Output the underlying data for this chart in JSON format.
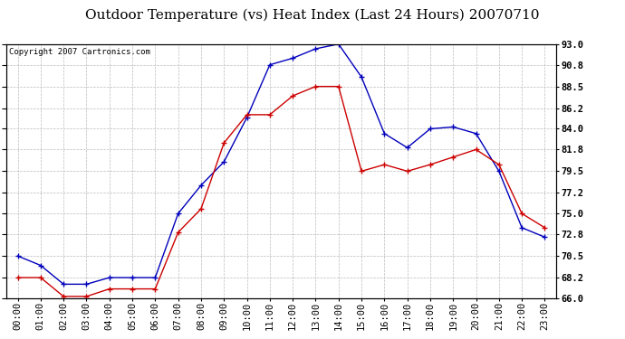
{
  "title": "Outdoor Temperature (vs) Heat Index (Last 24 Hours) 20070710",
  "copyright": "Copyright 2007 Cartronics.com",
  "x_labels": [
    "00:00",
    "01:00",
    "02:00",
    "03:00",
    "04:00",
    "05:00",
    "06:00",
    "07:00",
    "08:00",
    "09:00",
    "10:00",
    "11:00",
    "12:00",
    "13:00",
    "14:00",
    "15:00",
    "16:00",
    "17:00",
    "18:00",
    "19:00",
    "20:00",
    "21:00",
    "22:00",
    "23:00"
  ],
  "blue_data": [
    70.5,
    69.5,
    67.5,
    67.5,
    68.2,
    68.2,
    68.2,
    75.0,
    78.0,
    80.5,
    85.2,
    90.8,
    91.5,
    92.5,
    93.0,
    89.5,
    83.5,
    82.0,
    84.0,
    84.2,
    83.5,
    79.5,
    73.5,
    72.5
  ],
  "red_data": [
    68.2,
    68.2,
    66.2,
    66.2,
    67.0,
    67.0,
    67.0,
    73.0,
    75.5,
    82.5,
    85.5,
    85.5,
    87.5,
    88.5,
    88.5,
    79.5,
    80.2,
    79.5,
    80.2,
    81.0,
    81.8,
    80.2,
    75.0,
    73.5
  ],
  "ylim": [
    66.0,
    93.0
  ],
  "yticks": [
    66.0,
    68.2,
    70.5,
    72.8,
    75.0,
    77.2,
    79.5,
    81.8,
    84.0,
    86.2,
    88.5,
    90.8,
    93.0
  ],
  "ytick_labels": [
    "66.0",
    "68.2",
    "70.5",
    "72.8",
    "75.0",
    "77.2",
    "79.5",
    "81.8",
    "84.0",
    "86.2",
    "88.5",
    "90.8",
    "93.0"
  ],
  "blue_color": "#0000bb",
  "red_color": "#cc0000",
  "bg_color": "#ffffff",
  "grid_color": "#bbbbbb",
  "title_fontsize": 11,
  "tick_fontsize": 7.5,
  "copyright_fontsize": 6.5
}
